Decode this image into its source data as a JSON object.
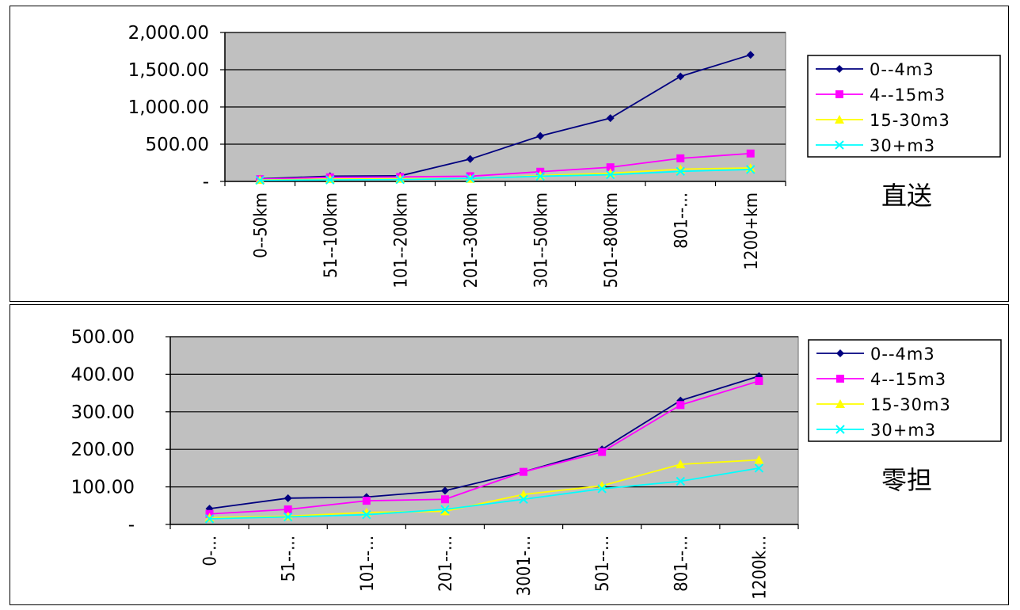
{
  "chart_data": [
    {
      "type": "line",
      "side_label": "直送",
      "categories": [
        "0--50km",
        "51--100km",
        "101--200km",
        "201--300km",
        "301--500km",
        "501--800km",
        "801--...",
        "1200+km"
      ],
      "ylim": [
        0,
        2000
      ],
      "yticks": [
        0,
        500,
        1000,
        1500,
        2000
      ],
      "ytick_labels": [
        "-",
        "500.00",
        "1,000.00",
        "1,500.00",
        "2,000.00"
      ],
      "grid": true,
      "legend_position": "right",
      "series": [
        {
          "name": "0--4m3",
          "color": "#00007f",
          "marker": "diamond",
          "values": [
            35,
            70,
            75,
            300,
            610,
            850,
            1410,
            1700
          ]
        },
        {
          "name": "4--15m3",
          "color": "#ff00ff",
          "marker": "square",
          "values": [
            30,
            55,
            60,
            70,
            130,
            190,
            310,
            375
          ]
        },
        {
          "name": "15-30m3",
          "color": "#ffff00",
          "marker": "triangle",
          "values": [
            20,
            30,
            35,
            35,
            80,
            110,
            165,
            180
          ]
        },
        {
          "name": "30+m3",
          "color": "#00ffff",
          "marker": "x",
          "values": [
            15,
            20,
            25,
            40,
            70,
            90,
            135,
            160
          ]
        }
      ]
    },
    {
      "type": "line",
      "side_label": "零担",
      "categories": [
        "0-...",
        "51--...",
        "101--...",
        "201--...",
        "3001-...",
        "501--...",
        "801--...",
        "1200k..."
      ],
      "ylim": [
        0,
        500
      ],
      "yticks": [
        0,
        100,
        200,
        300,
        400,
        500
      ],
      "ytick_labels": [
        "-",
        "100.00",
        "200.00",
        "300.00",
        "400.00",
        "500.00"
      ],
      "grid": true,
      "legend_position": "right",
      "series": [
        {
          "name": "0--4m3",
          "color": "#00007f",
          "marker": "diamond",
          "values": [
            42,
            70,
            73,
            90,
            140,
            200,
            330,
            395
          ]
        },
        {
          "name": "4--15m3",
          "color": "#ff00ff",
          "marker": "square",
          "values": [
            28,
            40,
            63,
            67,
            140,
            193,
            318,
            382
          ]
        },
        {
          "name": "15-30m3",
          "color": "#ffff00",
          "marker": "triangle",
          "values": [
            18,
            22,
            32,
            35,
            80,
            103,
            160,
            172
          ]
        },
        {
          "name": "30+m3",
          "color": "#00ffff",
          "marker": "x",
          "values": [
            15,
            20,
            26,
            40,
            67,
            95,
            115,
            150
          ]
        }
      ]
    }
  ]
}
